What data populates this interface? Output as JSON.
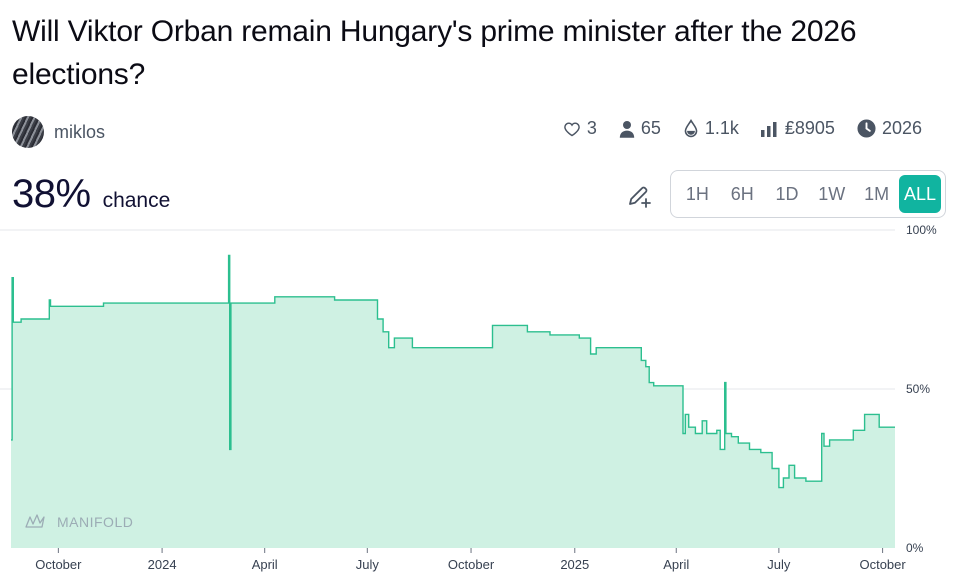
{
  "market": {
    "title": "Will Viktor Orban remain Hungary's prime minister after the 2026 elections?",
    "author": "miklos"
  },
  "stats": {
    "likes": "3",
    "traders": "65",
    "liquidity": "1.1k",
    "volume": "₤8905",
    "close": "2026"
  },
  "probability": {
    "value": "38%",
    "label": "chance"
  },
  "time_range": {
    "options": [
      "1H",
      "6H",
      "1D",
      "1W",
      "1M",
      "ALL"
    ],
    "selected": "ALL"
  },
  "watermark": "MANIFOLD",
  "colors": {
    "accent": "#11b4a0",
    "line": "#2cbf8f",
    "fill": "#cff1e3"
  },
  "icons": [
    "heart-icon",
    "person-icon",
    "droplet-icon",
    "bar-chart-icon",
    "clock-icon",
    "pencil-plus-icon",
    "manifold-logo-icon"
  ],
  "chart_data": {
    "type": "area",
    "ylim": [
      0,
      100
    ],
    "y_ticks": [
      "100%",
      "50%",
      "0%"
    ],
    "x_ticks": [
      "October",
      "2024",
      "April",
      "July",
      "October",
      "2025",
      "April",
      "July",
      "October"
    ],
    "x_range": [
      "2023-08-20",
      "2025-10-12"
    ],
    "grid": "horizontal at 50%",
    "series": [
      {
        "step": true,
        "points": [
          [
            "2023-08-20",
            34
          ],
          [
            "2023-08-21",
            85
          ],
          [
            "2023-08-22",
            71
          ],
          [
            "2023-08-29",
            72
          ],
          [
            "2023-09-23",
            78
          ],
          [
            "2023-09-24",
            76
          ],
          [
            "2023-11-10",
            77
          ],
          [
            "2024-02-28",
            77
          ],
          [
            "2024-02-29",
            92
          ],
          [
            "2024-03-01",
            31
          ],
          [
            "2024-03-02",
            77
          ],
          [
            "2024-04-10",
            79
          ],
          [
            "2024-06-01",
            79
          ],
          [
            "2024-06-02",
            78
          ],
          [
            "2024-07-05",
            78
          ],
          [
            "2024-07-10",
            72
          ],
          [
            "2024-07-15",
            68
          ],
          [
            "2024-07-20",
            63
          ],
          [
            "2024-07-25",
            66
          ],
          [
            "2024-08-10",
            63
          ],
          [
            "2024-10-15",
            63
          ],
          [
            "2024-10-20",
            70
          ],
          [
            "2024-11-20",
            68
          ],
          [
            "2024-12-10",
            67
          ],
          [
            "2024-12-25",
            67
          ],
          [
            "2025-01-05",
            66
          ],
          [
            "2025-01-15",
            61
          ],
          [
            "2025-01-20",
            63
          ],
          [
            "2025-02-25",
            63
          ],
          [
            "2025-03-01",
            59
          ],
          [
            "2025-03-05",
            57
          ],
          [
            "2025-03-08",
            52
          ],
          [
            "2025-03-12",
            51
          ],
          [
            "2025-04-06",
            51
          ],
          [
            "2025-04-07",
            36
          ],
          [
            "2025-04-09",
            42
          ],
          [
            "2025-04-12",
            38
          ],
          [
            "2025-04-18",
            36
          ],
          [
            "2025-04-24",
            40
          ],
          [
            "2025-04-28",
            36
          ],
          [
            "2025-05-07",
            37
          ],
          [
            "2025-05-10",
            31
          ],
          [
            "2025-05-14",
            52
          ],
          [
            "2025-05-15",
            36
          ],
          [
            "2025-05-20",
            35
          ],
          [
            "2025-05-26",
            33
          ],
          [
            "2025-06-05",
            31
          ],
          [
            "2025-06-15",
            30
          ],
          [
            "2025-06-25",
            25
          ],
          [
            "2025-07-01",
            19
          ],
          [
            "2025-07-05",
            22
          ],
          [
            "2025-07-10",
            26
          ],
          [
            "2025-07-15",
            22
          ],
          [
            "2025-07-25",
            21
          ],
          [
            "2025-08-05",
            21
          ],
          [
            "2025-08-08",
            36
          ],
          [
            "2025-08-10",
            32
          ],
          [
            "2025-08-15",
            34
          ],
          [
            "2025-08-25",
            34
          ],
          [
            "2025-09-05",
            37
          ],
          [
            "2025-09-15",
            42
          ],
          [
            "2025-09-25",
            42
          ],
          [
            "2025-09-28",
            38
          ],
          [
            "2025-10-12",
            38
          ]
        ]
      }
    ]
  }
}
